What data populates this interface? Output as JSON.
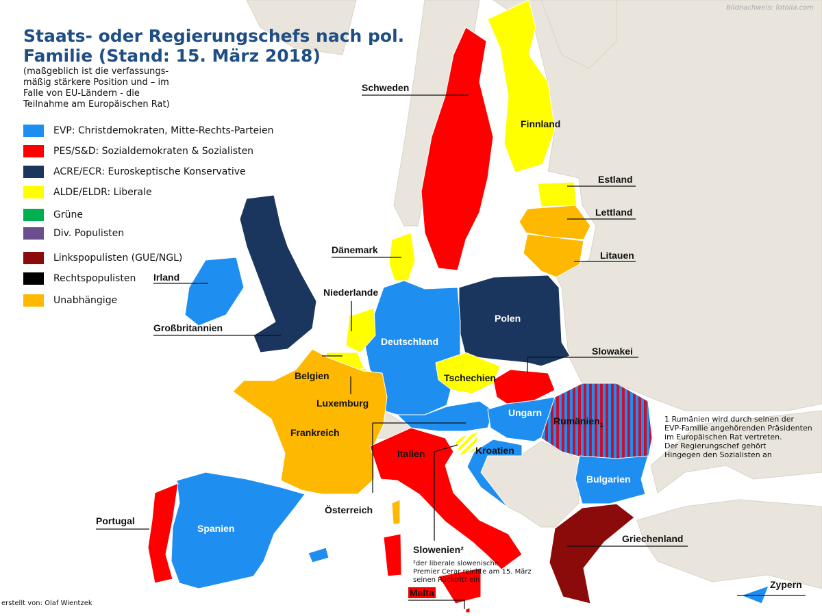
{
  "title_line1": "Staats- oder Regierungschefs nach pol.",
  "title_line2": "Familie (Stand: 15. März 2018)",
  "subtitle": "(maßgeblich ist die verfassungs-mäßig stärkere Position und – im Falle von EU-Ländern - die Teilnahme am Europäischen Rat)",
  "credit": "Bildnachweis: fotolia.com",
  "author": "erstellt von: Olaf Wientzek",
  "colors": {
    "evp": "#1e8ff0",
    "pes": "#ff0000",
    "ecr": "#1b365e",
    "alde": "#ffff00",
    "gruene": "#00b050",
    "populisten": "#6a4f8c",
    "links": "#8b0a0a",
    "rechts": "#000000",
    "unabh": "#ffb800",
    "nonEU": "#e9e5dd",
    "sea": "#ffffff"
  },
  "legend": [
    {
      "label": "EVP: Christdemokraten, Mitte-Rechts-Parteien",
      "color": "#1e8ff0"
    },
    {
      "label": "PES/S&D: Sozialdemokraten & Sozialisten",
      "color": "#ff0000"
    },
    {
      "label": "ACRE/ECR: Euroskeptische Konservative",
      "color": "#1b365e"
    },
    {
      "label": "ALDE/ELDR: Liberale",
      "color": "#ffff00"
    },
    {
      "label": "Grüne",
      "color": "#00b050"
    },
    {
      "label": "Div. Populisten",
      "color": "#6a4f8c"
    },
    {
      "label": "Linkspopulisten (GUE/NGL)",
      "color": "#8b0a0a"
    },
    {
      "label": "Rechtspopulisten",
      "color": "#000000"
    },
    {
      "label": "Unabhängige",
      "color": "#ffb800"
    }
  ],
  "countries": {
    "schweden": "Schweden",
    "finnland": "Finnland",
    "estland": "Estland",
    "lettland": "Lettland",
    "litauen": "Litauen",
    "daenemark": "Dänemark",
    "irland": "Irland",
    "niederlande": "Niederlande",
    "grossbritannien": "Großbritannien",
    "polen": "Polen",
    "deutschland": "Deutschland",
    "belgien": "Belgien",
    "slowakei": "Slowakei",
    "tschechien": "Tschechien",
    "luxemburg": "Luxemburg",
    "ungarn": "Ungarn",
    "rumaenien": "Rumänien",
    "rumaenien_sup": "1",
    "frankreich": "Frankreich",
    "italien": "Italien",
    "kroatien": "Kroatien",
    "bulgarien": "Bulgarien",
    "oesterreich": "Österreich",
    "portugal": "Portugal",
    "spanien": "Spanien",
    "griechenland": "Griechenland",
    "slowenien": "Slowenien²",
    "malta": "Malta",
    "zypern": "Zypern"
  },
  "notes": {
    "rumaenien": [
      "1 Rumänien wird durch seinen  der",
      "EVP-Familie angehörenden Präsidenten",
      "im Europäischen Rat vertreten.",
      "Der Regierungschef gehört",
      "Hingegen den Sozialisten an"
    ],
    "slowenien": [
      "²der liberale slowenische",
      "Premier Cerar reichte am 15. März",
      "seinen Rücktritt ein"
    ]
  }
}
